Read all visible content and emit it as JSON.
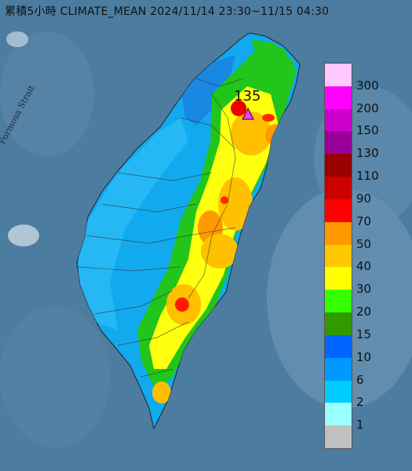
{
  "title": "累積5小時 CLIMATE_MEAN 2024/11/14 23:30~11/15 04:30",
  "strait_label": "Formosa Strait",
  "peak": {
    "value": "135",
    "marker_color": "#ff33ff"
  },
  "legend": {
    "levels": [
      {
        "label": "300",
        "color": "#ffc8ff"
      },
      {
        "label": "200",
        "color": "#ff00ff"
      },
      {
        "label": "150",
        "color": "#cc00cc"
      },
      {
        "label": "130",
        "color": "#990099"
      },
      {
        "label": "110",
        "color": "#990000"
      },
      {
        "label": "90",
        "color": "#cc0000"
      },
      {
        "label": "70",
        "color": "#ff0000"
      },
      {
        "label": "50",
        "color": "#ff9900"
      },
      {
        "label": "40",
        "color": "#ffc800"
      },
      {
        "label": "30",
        "color": "#ffff00"
      },
      {
        "label": "20",
        "color": "#33ff00"
      },
      {
        "label": "15",
        "color": "#339900"
      },
      {
        "label": "10",
        "color": "#0066ff"
      },
      {
        "label": "6",
        "color": "#0099ff"
      },
      {
        "label": "2",
        "color": "#00ccff"
      },
      {
        "label": "1",
        "color": "#99ffff"
      },
      {
        "label": "",
        "color": "#c0c0c0"
      }
    ]
  }
}
